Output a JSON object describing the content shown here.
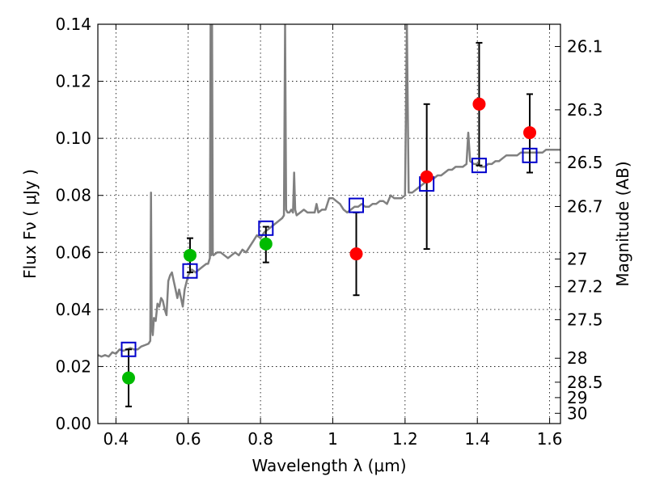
{
  "chart_data": {
    "type": "scatter",
    "title": "",
    "xlabel": "Wavelength  λ (μm)",
    "ylabel": "Flux  Fν  ( μJy )",
    "ylabel_right": "Magnitude (AB)",
    "xlim": [
      0.35,
      1.63
    ],
    "ylim": [
      0,
      0.14
    ],
    "grid": true,
    "x_ticks": [
      0.4,
      0.6,
      0.8,
      1.0,
      1.2,
      1.4,
      1.6
    ],
    "x_tick_labels": [
      "0.4",
      "0.6",
      "0.8",
      "1",
      "1.2",
      "1.4",
      "1.6"
    ],
    "y_ticks": [
      0,
      0.02,
      0.04,
      0.06,
      0.08,
      0.1,
      0.12,
      0.14
    ],
    "y_tick_labels": [
      "0.00",
      "0.02",
      "0.04",
      "0.06",
      "0.08",
      "0.10",
      "0.12",
      "0.14"
    ],
    "right_ticks": [
      {
        "label": "26.1",
        "flux": 0.1322
      },
      {
        "label": "26.3",
        "flux": 0.11
      },
      {
        "label": "26.5",
        "flux": 0.0915
      },
      {
        "label": "26.7",
        "flux": 0.0761
      },
      {
        "label": "27",
        "flux": 0.0577
      },
      {
        "label": "27.2",
        "flux": 0.048
      },
      {
        "label": "27.5",
        "flux": 0.0364
      },
      {
        "label": "28",
        "flux": 0.0229
      },
      {
        "label": "28.5",
        "flux": 0.0145
      },
      {
        "label": "29",
        "flux": 0.0091
      },
      {
        "label": "30",
        "flux": 0.0036
      }
    ],
    "series": [
      {
        "kind": "spectrum",
        "color": "#808080",
        "points": [
          [
            0.35,
            0.024
          ],
          [
            0.36,
            0.0235
          ],
          [
            0.37,
            0.024
          ],
          [
            0.38,
            0.0235
          ],
          [
            0.39,
            0.025
          ],
          [
            0.4,
            0.0245
          ],
          [
            0.41,
            0.026
          ],
          [
            0.42,
            0.0255
          ],
          [
            0.43,
            0.026
          ],
          [
            0.44,
            0.0265
          ],
          [
            0.45,
            0.026
          ],
          [
            0.46,
            0.026
          ],
          [
            0.47,
            0.027
          ],
          [
            0.48,
            0.0275
          ],
          [
            0.49,
            0.028
          ],
          [
            0.495,
            0.029
          ],
          [
            0.497,
            0.081
          ],
          [
            0.499,
            0.034
          ],
          [
            0.502,
            0.031
          ],
          [
            0.505,
            0.037
          ],
          [
            0.51,
            0.036
          ],
          [
            0.515,
            0.042
          ],
          [
            0.52,
            0.041
          ],
          [
            0.525,
            0.044
          ],
          [
            0.53,
            0.043
          ],
          [
            0.535,
            0.04
          ],
          [
            0.54,
            0.038
          ],
          [
            0.545,
            0.05
          ],
          [
            0.55,
            0.052
          ],
          [
            0.555,
            0.053
          ],
          [
            0.56,
            0.05
          ],
          [
            0.565,
            0.047
          ],
          [
            0.57,
            0.044
          ],
          [
            0.575,
            0.047
          ],
          [
            0.58,
            0.044
          ],
          [
            0.585,
            0.041
          ],
          [
            0.59,
            0.047
          ],
          [
            0.6,
            0.052
          ],
          [
            0.61,
            0.054
          ],
          [
            0.62,
            0.053
          ],
          [
            0.63,
            0.054
          ],
          [
            0.64,
            0.055
          ],
          [
            0.65,
            0.056
          ],
          [
            0.655,
            0.056
          ],
          [
            0.66,
            0.058
          ],
          [
            0.662,
            0.14
          ],
          [
            0.664,
            0.059
          ],
          [
            0.666,
            0.14
          ],
          [
            0.668,
            0.06
          ],
          [
            0.67,
            0.059
          ],
          [
            0.68,
            0.06
          ],
          [
            0.69,
            0.06
          ],
          [
            0.7,
            0.059
          ],
          [
            0.71,
            0.058
          ],
          [
            0.72,
            0.059
          ],
          [
            0.73,
            0.06
          ],
          [
            0.74,
            0.059
          ],
          [
            0.75,
            0.061
          ],
          [
            0.76,
            0.06
          ],
          [
            0.77,
            0.062
          ],
          [
            0.78,
            0.064
          ],
          [
            0.79,
            0.066
          ],
          [
            0.8,
            0.065
          ],
          [
            0.81,
            0.067
          ],
          [
            0.82,
            0.068
          ],
          [
            0.83,
            0.069
          ],
          [
            0.84,
            0.07
          ],
          [
            0.85,
            0.071
          ],
          [
            0.86,
            0.072
          ],
          [
            0.865,
            0.073
          ],
          [
            0.868,
            0.14
          ],
          [
            0.871,
            0.075
          ],
          [
            0.875,
            0.074
          ],
          [
            0.88,
            0.074
          ],
          [
            0.885,
            0.075
          ],
          [
            0.89,
            0.074
          ],
          [
            0.893,
            0.088
          ],
          [
            0.896,
            0.075
          ],
          [
            0.9,
            0.073
          ],
          [
            0.91,
            0.074
          ],
          [
            0.92,
            0.075
          ],
          [
            0.93,
            0.074
          ],
          [
            0.94,
            0.074
          ],
          [
            0.95,
            0.074
          ],
          [
            0.955,
            0.077
          ],
          [
            0.96,
            0.074
          ],
          [
            0.97,
            0.075
          ],
          [
            0.98,
            0.075
          ],
          [
            0.99,
            0.079
          ],
          [
            1.0,
            0.079
          ],
          [
            1.01,
            0.078
          ],
          [
            1.02,
            0.077
          ],
          [
            1.03,
            0.075
          ],
          [
            1.04,
            0.074
          ],
          [
            1.05,
            0.075
          ],
          [
            1.06,
            0.076
          ],
          [
            1.07,
            0.076
          ],
          [
            1.08,
            0.077
          ],
          [
            1.09,
            0.076
          ],
          [
            1.1,
            0.076
          ],
          [
            1.11,
            0.077
          ],
          [
            1.12,
            0.077
          ],
          [
            1.13,
            0.078
          ],
          [
            1.14,
            0.078
          ],
          [
            1.15,
            0.077
          ],
          [
            1.16,
            0.08
          ],
          [
            1.17,
            0.079
          ],
          [
            1.18,
            0.079
          ],
          [
            1.19,
            0.079
          ],
          [
            1.2,
            0.08
          ],
          [
            1.205,
            0.14
          ],
          [
            1.21,
            0.081
          ],
          [
            1.22,
            0.081
          ],
          [
            1.23,
            0.082
          ],
          [
            1.24,
            0.083
          ],
          [
            1.25,
            0.084
          ],
          [
            1.26,
            0.085
          ],
          [
            1.27,
            0.086
          ],
          [
            1.28,
            0.086
          ],
          [
            1.29,
            0.087
          ],
          [
            1.3,
            0.087
          ],
          [
            1.31,
            0.088
          ],
          [
            1.32,
            0.089
          ],
          [
            1.33,
            0.089
          ],
          [
            1.34,
            0.09
          ],
          [
            1.35,
            0.09
          ],
          [
            1.36,
            0.09
          ],
          [
            1.37,
            0.091
          ],
          [
            1.375,
            0.102
          ],
          [
            1.38,
            0.092
          ],
          [
            1.39,
            0.091
          ],
          [
            1.4,
            0.091
          ],
          [
            1.41,
            0.09
          ],
          [
            1.42,
            0.09
          ],
          [
            1.43,
            0.091
          ],
          [
            1.44,
            0.091
          ],
          [
            1.45,
            0.092
          ],
          [
            1.46,
            0.092
          ],
          [
            1.47,
            0.093
          ],
          [
            1.48,
            0.094
          ],
          [
            1.49,
            0.094
          ],
          [
            1.5,
            0.094
          ],
          [
            1.51,
            0.094
          ],
          [
            1.52,
            0.095
          ],
          [
            1.53,
            0.095
          ],
          [
            1.54,
            0.095
          ],
          [
            1.55,
            0.095
          ],
          [
            1.56,
            0.095
          ],
          [
            1.57,
            0.095
          ],
          [
            1.58,
            0.095
          ],
          [
            1.59,
            0.096
          ],
          [
            1.6,
            0.096
          ],
          [
            1.61,
            0.096
          ],
          [
            1.62,
            0.096
          ],
          [
            1.63,
            0.096
          ]
        ]
      },
      {
        "kind": "model",
        "color": "#0000cc",
        "marker": "open-square",
        "x": [
          0.435,
          0.605,
          0.815,
          1.065,
          1.26,
          1.405,
          1.545
        ],
        "y": [
          0.026,
          0.0535,
          0.0685,
          0.0765,
          0.084,
          0.0905,
          0.094
        ]
      },
      {
        "kind": "observed",
        "color": "#00bb00",
        "marker": "filled-circle",
        "x": [
          0.435,
          0.605,
          0.815
        ],
        "y": [
          0.016,
          0.059,
          0.063
        ],
        "err_low": [
          0.006,
          0.053,
          0.0565
        ],
        "err_high": [
          0.026,
          0.065,
          0.069
        ]
      },
      {
        "kind": "observed",
        "color": "#ff0000",
        "marker": "filled-circle",
        "x": [
          1.065,
          1.26,
          1.405,
          1.545
        ],
        "y": [
          0.0595,
          0.0865,
          0.112,
          0.102
        ],
        "err_low": [
          0.045,
          0.0612,
          0.0905,
          0.088
        ],
        "err_high": [
          0.074,
          0.112,
          0.1335,
          0.1155
        ]
      }
    ]
  }
}
